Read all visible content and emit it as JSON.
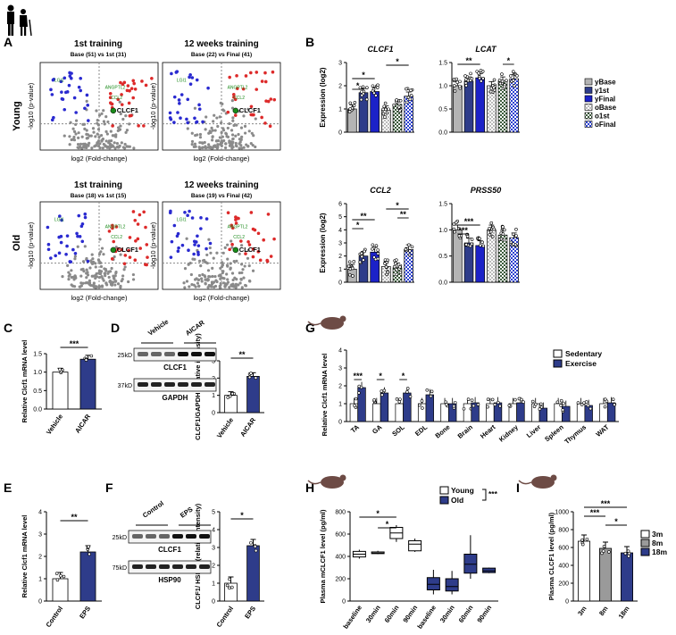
{
  "panel_letters": [
    "A",
    "B",
    "C",
    "D",
    "E",
    "F",
    "G",
    "H",
    "I"
  ],
  "colors": {
    "navy": "#2e3c8a",
    "blue": "#1c22c8",
    "gray": "#b4b4b4",
    "white": "#ffffff",
    "red": "#dd2a2a",
    "green": "#1a8a1a",
    "volBlue": "#2a2ad0"
  },
  "legend_B": [
    "yBase",
    "y1st",
    "yFinal",
    "oBase",
    "o1st",
    "oFinal"
  ],
  "legend_G": [
    "Sedentary",
    "Exercise"
  ],
  "legend_H": [
    "Young",
    "Old"
  ],
  "legend_I": [
    "3m",
    "8m",
    "18m"
  ],
  "volcano": {
    "row_labels": [
      "Young",
      "Old"
    ],
    "col_titles": [
      "1st training",
      "12 weeks training"
    ],
    "subtitles": [
      "Base (51)  vs  1st (31)",
      "Base (22)  vs  Final (41)",
      "Base (18)  vs  1st (15)",
      "Base (19)  vs  Final (42)"
    ],
    "xlabel": "log2 (Fold-change)",
    "ylabel": "-log10 (p-value)",
    "highlight": "CLCF1",
    "genes": [
      "LGI1",
      "ANGPTL2",
      "CCL2",
      "PRSS50",
      "LCAT"
    ]
  },
  "chart_data": [
    {
      "panel": "B",
      "type": "bar",
      "title": "CLCF1",
      "ylabel": "Expression (log2)",
      "ylim": [
        0,
        3
      ],
      "yticks": [
        "0",
        "1",
        "2",
        "3"
      ],
      "categories": [
        "yBase",
        "y1st",
        "yFinal",
        "oBase",
        "o1st",
        "oFinal"
      ],
      "values": [
        1.0,
        1.7,
        1.75,
        0.95,
        1.2,
        1.55
      ],
      "sig": [
        "*",
        "*",
        "*"
      ]
    },
    {
      "panel": "B",
      "type": "bar",
      "title": "LCAT",
      "ylabel": "",
      "ylim": [
        0,
        1.5
      ],
      "yticks": [
        "0.0",
        "0.5",
        "1.0",
        "1.5"
      ],
      "categories": [
        "yBase",
        "y1st",
        "yFinal",
        "oBase",
        "o1st",
        "oFinal"
      ],
      "values": [
        1.0,
        1.1,
        1.17,
        1.0,
        1.1,
        1.15
      ],
      "sig": [
        "**",
        "*"
      ]
    },
    {
      "panel": "B",
      "type": "bar",
      "title": "CCL2",
      "ylabel": "Expression (log2)",
      "ylim": [
        0,
        6
      ],
      "yticks": [
        "0",
        "1",
        "2",
        "3",
        "4",
        "5",
        "6"
      ],
      "categories": [
        "yBase",
        "y1st",
        "yFinal",
        "oBase",
        "o1st",
        "oFinal"
      ],
      "values": [
        1.0,
        2.0,
        2.3,
        1.2,
        1.1,
        2.5
      ],
      "sig": [
        "*",
        "**",
        "*",
        "**"
      ]
    },
    {
      "panel": "B",
      "type": "bar",
      "title": "PRSS50",
      "ylabel": "",
      "ylim": [
        0,
        1.5
      ],
      "yticks": [
        "0.0",
        "0.5",
        "1.0",
        "1.5"
      ],
      "categories": [
        "yBase",
        "y1st",
        "yFinal",
        "oBase",
        "o1st",
        "oFinal"
      ],
      "values": [
        1.0,
        0.75,
        0.7,
        1.0,
        0.9,
        0.85
      ],
      "sig": [
        "***",
        "***"
      ]
    },
    {
      "panel": "C",
      "type": "bar",
      "ylabel": "Relative Clcf1 mRNA level",
      "ylim": [
        0,
        1.5
      ],
      "yticks": [
        "0.0",
        "0.5",
        "1.0",
        "1.5"
      ],
      "categories": [
        "Vehicle",
        "AICAR"
      ],
      "values": [
        1.0,
        1.35
      ],
      "sig": [
        "***"
      ]
    },
    {
      "panel": "D",
      "type": "bar",
      "ylabel": "CLCF1/GAPDH (relative intensity)",
      "ylim": [
        0,
        3
      ],
      "yticks": [
        "0",
        "1",
        "2",
        "3"
      ],
      "categories": [
        "Vehicle",
        "AICAR"
      ],
      "values": [
        1.0,
        2.1
      ],
      "sig": [
        "**"
      ],
      "blot": {
        "lanes": [
          "Vehicle",
          "AICAR"
        ],
        "bands": [
          "CLCF1",
          "GAPDH"
        ],
        "mw": [
          "25kD",
          "37kD"
        ]
      }
    },
    {
      "panel": "E",
      "type": "bar",
      "ylabel": "Relative Clcf1 mRNA level",
      "ylim": [
        0,
        4
      ],
      "yticks": [
        "0",
        "1",
        "2",
        "3",
        "4"
      ],
      "categories": [
        "Control",
        "EPS"
      ],
      "values": [
        1.0,
        2.2
      ],
      "sig": [
        "**"
      ]
    },
    {
      "panel": "F",
      "type": "bar",
      "ylabel": "CLCF1/ HSP90 (relative intensity)",
      "ylim": [
        0,
        5
      ],
      "yticks": [
        "0",
        "1",
        "2",
        "3",
        "4",
        "5"
      ],
      "categories": [
        "Control",
        "EPS"
      ],
      "values": [
        1.0,
        3.1
      ],
      "sig": [
        "*"
      ],
      "blot": {
        "lanes": [
          "Control",
          "EPS"
        ],
        "bands": [
          "CLCF1",
          "HSP90"
        ],
        "mw": [
          "25kD",
          "75kD"
        ]
      }
    },
    {
      "panel": "G",
      "type": "bar",
      "ylabel": "Relative Clcf1 mRNA level",
      "ylim": [
        0,
        4
      ],
      "yticks": [
        "0",
        "1",
        "2",
        "3",
        "4"
      ],
      "categories": [
        "TA",
        "GA",
        "SOL",
        "EDL",
        "Bone",
        "Brain",
        "Heart",
        "Kidney",
        "Liver",
        "Spleen",
        "Thymus",
        "WAT"
      ],
      "series": [
        {
          "name": "Sedentary",
          "values": [
            1.0,
            1.0,
            1.0,
            1.0,
            1.0,
            1.0,
            1.0,
            1.0,
            1.0,
            1.0,
            1.0,
            1.0
          ]
        },
        {
          "name": "Exercise",
          "values": [
            1.9,
            1.6,
            1.6,
            1.5,
            1.0,
            1.05,
            1.05,
            1.05,
            0.75,
            0.85,
            0.9,
            1.05
          ]
        }
      ],
      "sig": [
        "***",
        "*",
        "*"
      ]
    },
    {
      "panel": "H",
      "type": "box",
      "ylabel": "Plasma mCLCF1 level (pg/ml)",
      "ylim": [
        0,
        800
      ],
      "yticks": [
        "0",
        "200",
        "400",
        "600",
        "800"
      ],
      "categories": [
        "baseline",
        "30min",
        "60min",
        "90min",
        "baseline",
        "30min",
        "60min",
        "90min"
      ],
      "groups": [
        "Young",
        "Young",
        "Young",
        "Young",
        "Old",
        "Old",
        "Old",
        "Old"
      ],
      "medians": [
        420,
        430,
        610,
        510,
        150,
        130,
        330,
        270
      ],
      "q1": [
        395,
        425,
        560,
        450,
        100,
        90,
        250,
        255
      ],
      "q3": [
        445,
        440,
        660,
        540,
        210,
        200,
        420,
        295
      ],
      "min": [
        380,
        420,
        530,
        440,
        60,
        60,
        200,
        250
      ],
      "max": [
        460,
        450,
        680,
        560,
        280,
        270,
        590,
        300
      ],
      "sig": [
        "*",
        "*",
        "***"
      ]
    },
    {
      "panel": "I",
      "type": "bar",
      "ylabel": "Plasma CLCF1 level (pg/ml)",
      "ylim": [
        0,
        1000
      ],
      "yticks": [
        "0",
        "200",
        "400",
        "600",
        "800",
        "1000"
      ],
      "categories": [
        "3m",
        "8m",
        "18m"
      ],
      "values": [
        670,
        590,
        540
      ],
      "sig": [
        "***",
        "***",
        "*"
      ]
    }
  ]
}
